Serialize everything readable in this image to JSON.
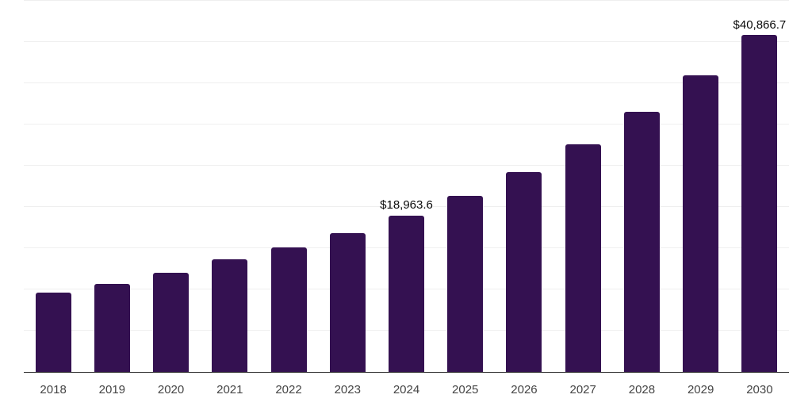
{
  "chart": {
    "background_color": "#ffffff",
    "bar_color": "#341151",
    "gridline_color": "#efefef",
    "axis_line_color": "#262626",
    "tick_label_color": "#444444",
    "data_label_color": "#0a0a0a"
  },
  "chart_data": {
    "type": "bar",
    "title": "",
    "xlabel": "",
    "ylabel": "",
    "categories": [
      "2018",
      "2019",
      "2020",
      "2021",
      "2022",
      "2023",
      "2024",
      "2025",
      "2026",
      "2027",
      "2028",
      "2029",
      "2030"
    ],
    "values": [
      9650,
      10680,
      12050,
      13620,
      15130,
      16860,
      18963.6,
      21300,
      24190,
      27590,
      31550,
      36000,
      40866.7
    ],
    "value_labels": [
      null,
      null,
      null,
      null,
      null,
      null,
      "$18,963.6",
      null,
      null,
      null,
      null,
      null,
      "$40,866.7"
    ],
    "ylim": [
      0,
      45000
    ],
    "gridline_step": 5000,
    "grid": true,
    "y_axis_tick_labels_visible": false,
    "legend_position": "none"
  }
}
